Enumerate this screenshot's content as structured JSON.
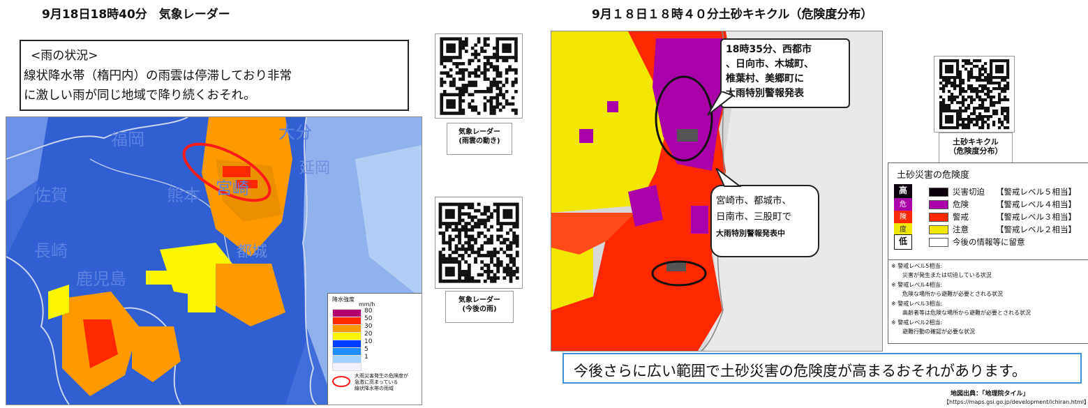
{
  "left": {
    "title": "9月18日18時40分　気象レーダー",
    "rain_box": {
      "heading": "<雨の状況>",
      "line1": "線状降水帯（楕円内）の雨雲は停滞しており非常",
      "line2": "に激しい雨が同じ地域で降り続くおそれ。"
    },
    "map_labels": [
      "福岡",
      "大分",
      "佐賀",
      "熊本",
      "長崎",
      "宮崎",
      "鹿児島",
      "延岡",
      "都城"
    ],
    "rain_legend": {
      "title": "降水強度",
      "unit": "mm/h",
      "levels": [
        {
          "label": "80",
          "color": "#b4006e"
        },
        {
          "label": "50",
          "color": "#ff2800"
        },
        {
          "label": "30",
          "color": "#ff9900"
        },
        {
          "label": "20",
          "color": "#faf500"
        },
        {
          "label": "10",
          "color": "#0041ff"
        },
        {
          "label": "5",
          "color": "#218cff"
        },
        {
          "label": "1",
          "color": "#a0d2ff"
        },
        {
          "label": "",
          "color": "#f2f2ff"
        }
      ],
      "ellipse_note_lines": [
        "大雨災害発生の危険度が",
        "急激に高まっている",
        "線状降水帯の雨域"
      ]
    }
  },
  "qr_left": [
    {
      "caption1": "気象レーダー",
      "caption2": "(雨雲の動き)"
    },
    {
      "caption1": "気象レーダー",
      "caption2": "(今後の雨)"
    }
  ],
  "right": {
    "title": "9月１８日１８時４０分土砂キキクル（危険度分布）",
    "callout_top": [
      "18時35分、西都市",
      "、日向市、木城町、",
      "椎葉村、美郷町に",
      "大雨特別警報発表"
    ],
    "callout_mid": [
      "宮崎市、都城市、",
      "日南市、三股町で",
      "大雨特別警報発表中"
    ],
    "qr_caption": [
      "土砂キキクル",
      "（危険度分布）"
    ],
    "hazard_legend": {
      "title": "土砂災害の危険度",
      "scale_high": "高",
      "scale_low": "低",
      "scale_chars": [
        "危",
        "険",
        "度"
      ],
      "rows": [
        {
          "color": "#0c000c",
          "level": "災害切迫",
          "desc": "【警戒レベル５相当】"
        },
        {
          "color": "#aa00aa",
          "level": "危険",
          "desc": "【警戒レベル４相当】"
        },
        {
          "color": "#ff2800",
          "level": "警戒",
          "desc": "【警戒レベル３相当】"
        },
        {
          "color": "#f2e700",
          "level": "注意",
          "desc": "【警戒レベル２相当】"
        },
        {
          "color": "#ffffff",
          "level": "今後の情報等に留意",
          "desc": ""
        }
      ],
      "notes": [
        "※ 警戒レベル5相当:",
        "　　災害が発生または切迫している状況",
        "※ 警戒レベル4相当:",
        "　　危険な場所から避難が必要とされる状況",
        "※ 警戒レベル3相当:",
        "　　高齢者等は危険な場所から避難が必要とされる状況",
        "※ 警戒レベル2相当:",
        "　　避難行動の確認が必要な状況"
      ]
    },
    "bottom_message": "今後さらに広い範囲で土砂災害の危険度が高まるおそれがあります。",
    "source_line1": "地図出典：「地理院タイル」",
    "source_line2": "【https://maps.gsi.go.jp/development/ichiran.html】"
  }
}
